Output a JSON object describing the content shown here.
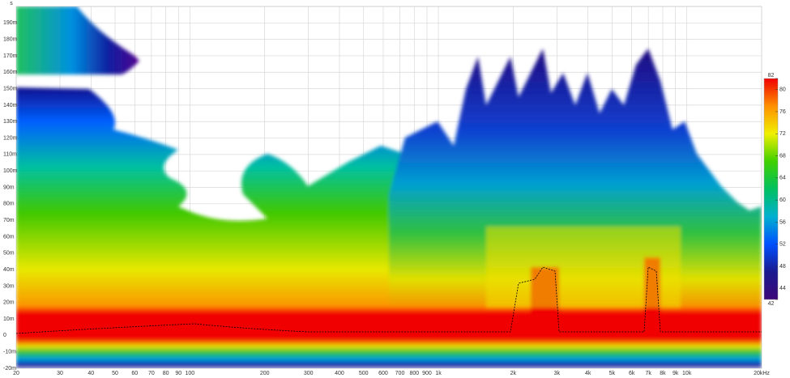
{
  "chart_data": {
    "type": "heatmap",
    "y_unit": "s",
    "xlim": [
      20,
      20000
    ],
    "xlog": true,
    "xticks": [
      20,
      30,
      40,
      50,
      60,
      70,
      80,
      90,
      100,
      200,
      300,
      400,
      500,
      600,
      700,
      800,
      900,
      {
        "value": 1000,
        "label": "1k"
      },
      {
        "value": 2000,
        "label": "2k"
      },
      {
        "value": 3000,
        "label": "3k"
      },
      {
        "value": 4000,
        "label": "4k"
      },
      {
        "value": 5000,
        "label": "5k"
      },
      {
        "value": 6000,
        "label": "6k"
      },
      {
        "value": 7000,
        "label": "7k"
      },
      {
        "value": 8000,
        "label": "8k"
      },
      {
        "value": 9000,
        "label": "9k"
      },
      {
        "value": 10000,
        "label": "10k"
      },
      {
        "value": 20000,
        "label": "20kHz"
      }
    ],
    "ylim": [
      -20,
      200
    ],
    "yticks": [
      {
        "value": -20,
        "label": "-20m"
      },
      {
        "value": -10,
        "label": "-10m"
      },
      0,
      {
        "value": 10,
        "label": "10m"
      },
      {
        "value": 20,
        "label": "20m"
      },
      {
        "value": 30,
        "label": "30m"
      },
      {
        "value": 40,
        "label": "40m"
      },
      {
        "value": 50,
        "label": "50m"
      },
      {
        "value": 60,
        "label": "60m"
      },
      {
        "value": 70,
        "label": "70m"
      },
      {
        "value": 80,
        "label": "80m"
      },
      {
        "value": 90,
        "label": "90m"
      },
      {
        "value": 100,
        "label": "100m"
      },
      {
        "value": 110,
        "label": "110m"
      },
      {
        "value": 120,
        "label": "120m"
      },
      {
        "value": 130,
        "label": "130m"
      },
      {
        "value": 140,
        "label": "140m"
      },
      {
        "value": 150,
        "label": "150m"
      },
      {
        "value": 160,
        "label": "160m"
      },
      {
        "value": 170,
        "label": "170m"
      },
      {
        "value": 180,
        "label": "180m"
      },
      {
        "value": 190,
        "label": "190m"
      }
    ],
    "grid": true,
    "colorbar": {
      "lim": [
        42,
        82
      ],
      "ticks": [
        42,
        44,
        48,
        52,
        56,
        60,
        64,
        68,
        72,
        76,
        80,
        82
      ],
      "colors": [
        "#3c0878",
        "#1a1a90",
        "#0050ff",
        "#00b0d0",
        "#00c060",
        "#40d000",
        "#f0f000",
        "#ff9000",
        "#f00000"
      ]
    }
  }
}
